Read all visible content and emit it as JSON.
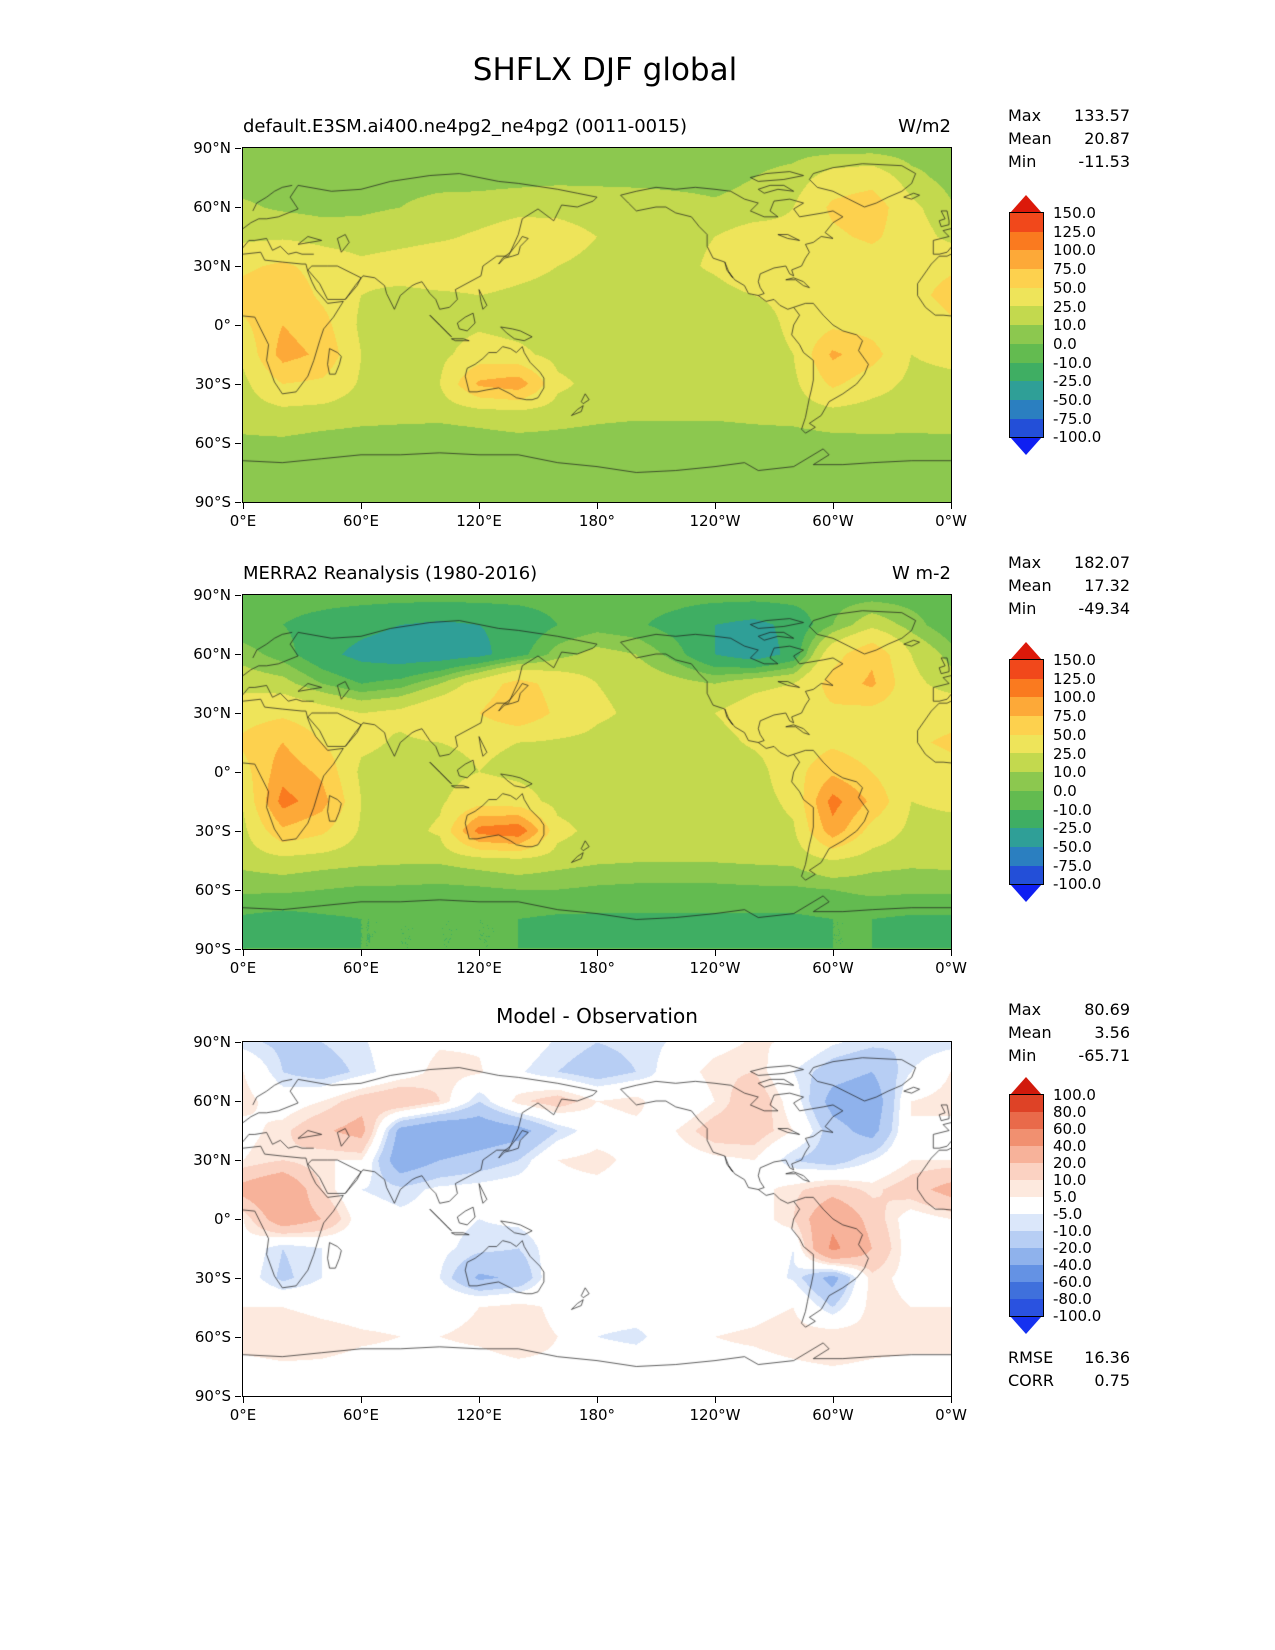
{
  "title": "SHFLX DJF global",
  "panels": [
    {
      "title_left": "default.E3SM.ai400.ne4pg2_ne4pg2 (0011-0015)",
      "units": "W/m2",
      "stats": {
        "max_label": "Max",
        "max_value": "133.57",
        "mean_label": "Mean",
        "mean_value": "20.87",
        "min_label": "Min",
        "min_value": "-11.53"
      }
    },
    {
      "title_left": "MERRA2 Reanalysis (1980-2016)",
      "units": "W m-2",
      "stats": {
        "max_label": "Max",
        "max_value": "182.07",
        "mean_label": "Mean",
        "mean_value": "17.32",
        "min_label": "Min",
        "min_value": "-49.34"
      }
    },
    {
      "title_center": "Model - Observation",
      "stats": {
        "max_label": "Max",
        "max_value": "80.69",
        "mean_label": "Mean",
        "mean_value": "3.56",
        "min_label": "Min",
        "min_value": "-65.71"
      },
      "metrics": {
        "rmse_label": "RMSE",
        "rmse_value": "16.36",
        "corr_label": "CORR",
        "corr_value": "0.75"
      }
    }
  ],
  "axes": {
    "x_tick_lons": [
      0,
      60,
      120,
      180,
      240,
      300,
      360
    ],
    "x_tick_labels": [
      "0°E",
      "60°E",
      "120°E",
      "180°",
      "120°W",
      "60°W",
      "0°W"
    ],
    "y_tick_lats": [
      90,
      60,
      30,
      0,
      -30,
      -60,
      -90
    ],
    "y_tick_labels": [
      "90°N",
      "60°N",
      "30°N",
      "0°",
      "30°S",
      "60°S",
      "90°S"
    ]
  },
  "chart_data": {
    "type": "heatmap",
    "variable": "SHFLX",
    "season": "DJF",
    "region": "global",
    "projection": "equirectangular, lon 0E eastward to 0W, lat 90N to 90S",
    "colorbars": {
      "flux": {
        "levels": [
          -100,
          -75,
          -50,
          -25,
          -10,
          0,
          10,
          25,
          50,
          75,
          100,
          125,
          150
        ],
        "labels_top_to_bottom": [
          "150.0",
          "125.0",
          "100.0",
          "75.0",
          "50.0",
          "25.0",
          "10.0",
          "0.0",
          "-10.0",
          "-25.0",
          "-50.0",
          "-75.0",
          "-100.0"
        ],
        "colors_low_to_high": [
          "#0f1ff2",
          "#234fd8",
          "#2b7fc0",
          "#2f9f97",
          "#3fae63",
          "#63bb50",
          "#8cc84f",
          "#c3d94e",
          "#eee45a",
          "#fdd14e",
          "#fda938",
          "#fa7a1f",
          "#f1481b",
          "#dc190a"
        ]
      },
      "diff": {
        "levels": [
          -100,
          -80,
          -60,
          -40,
          -20,
          -10,
          -5,
          5,
          10,
          20,
          40,
          60,
          80,
          100
        ],
        "labels_top_to_bottom": [
          "100.0",
          "80.0",
          "60.0",
          "40.0",
          "20.0",
          "10.0",
          "5.0",
          "-5.0",
          "-10.0",
          "-20.0",
          "-40.0",
          "-60.0",
          "-80.0",
          "-100.0"
        ],
        "colors_low_to_high": [
          "#1531f0",
          "#2a52e0",
          "#3f70dc",
          "#6492e4",
          "#8fb2ec",
          "#b7cef4",
          "#dbe7fa",
          "#ffffff",
          "#fde9de",
          "#fbd2c2",
          "#f7b29a",
          "#f19070",
          "#e96a4a",
          "#de4226",
          "#d11a0c"
        ]
      }
    },
    "grids_note": "field values estimated from figure on a 20deg-lon x 15deg-lat grid; rows lat 90N to 90S, cols lon 0E eastward to 360",
    "panels": [
      {
        "name": "model",
        "colorbar": "flux",
        "grid": [
          [
            3,
            3,
            3,
            4,
            4,
            4,
            4,
            4,
            4,
            4,
            4,
            4,
            4,
            5,
            5,
            4,
            4,
            3,
            3
          ],
          [
            5,
            4,
            4,
            5,
            6,
            6,
            5,
            5,
            6,
            6,
            6,
            6,
            6,
            10,
            15,
            35,
            40,
            15,
            5
          ],
          [
            12,
            8,
            6,
            8,
            10,
            14,
            16,
            20,
            22,
            20,
            18,
            15,
            12,
            15,
            25,
            55,
            65,
            30,
            12
          ],
          [
            20,
            22,
            18,
            15,
            18,
            22,
            28,
            35,
            30,
            25,
            22,
            20,
            25,
            35,
            30,
            45,
            55,
            35,
            20
          ],
          [
            45,
            55,
            40,
            30,
            35,
            40,
            35,
            30,
            25,
            22,
            20,
            20,
            28,
            40,
            30,
            28,
            35,
            40,
            45
          ],
          [
            60,
            70,
            45,
            25,
            20,
            22,
            25,
            22,
            20,
            18,
            18,
            16,
            18,
            25,
            30,
            35,
            30,
            40,
            60
          ],
          [
            45,
            75,
            60,
            20,
            15,
            18,
            22,
            18,
            15,
            14,
            14,
            13,
            13,
            15,
            30,
            45,
            40,
            25,
            45
          ],
          [
            30,
            85,
            70,
            25,
            18,
            20,
            35,
            30,
            18,
            15,
            14,
            13,
            13,
            15,
            25,
            80,
            60,
            25,
            30
          ],
          [
            20,
            50,
            45,
            22,
            18,
            25,
            80,
            90,
            30,
            18,
            15,
            14,
            14,
            16,
            20,
            55,
            35,
            20,
            20
          ],
          [
            15,
            18,
            16,
            14,
            13,
            13,
            15,
            18,
            15,
            13,
            12,
            12,
            12,
            13,
            14,
            18,
            15,
            14,
            15
          ],
          [
            8,
            8,
            6,
            5,
            5,
            4,
            5,
            6,
            6,
            5,
            4,
            4,
            4,
            5,
            5,
            6,
            8,
            8,
            8
          ],
          [
            4,
            3,
            3,
            3,
            3,
            3,
            3,
            3,
            4,
            4,
            4,
            3,
            3,
            3,
            3,
            4,
            4,
            4,
            4
          ],
          [
            3,
            3,
            3,
            3,
            3,
            3,
            3,
            3,
            3,
            3,
            3,
            3,
            3,
            3,
            3,
            3,
            3,
            3,
            3
          ]
        ]
      },
      {
        "name": "observation",
        "colorbar": "flux",
        "grid": [
          [
            -5,
            -5,
            -5,
            -5,
            -5,
            -5,
            -5,
            -5,
            -5,
            -5,
            -5,
            -5,
            -5,
            -5,
            -5,
            -5,
            -5,
            -5,
            -5
          ],
          [
            -8,
            -10,
            -15,
            -20,
            -25,
            -28,
            -25,
            -20,
            -10,
            -5,
            -8,
            -15,
            -25,
            -30,
            -20,
            0,
            20,
            5,
            -8
          ],
          [
            5,
            -5,
            -20,
            -30,
            -35,
            -35,
            -30,
            -15,
            5,
            15,
            10,
            -5,
            -25,
            -35,
            -20,
            40,
            70,
            25,
            5
          ],
          [
            18,
            15,
            0,
            -10,
            -5,
            10,
            35,
            60,
            40,
            25,
            20,
            15,
            10,
            20,
            25,
            60,
            80,
            30,
            18
          ],
          [
            40,
            45,
            35,
            25,
            30,
            45,
            50,
            70,
            45,
            28,
            22,
            20,
            25,
            35,
            40,
            45,
            40,
            35,
            40
          ],
          [
            55,
            75,
            50,
            30,
            22,
            25,
            28,
            25,
            22,
            20,
            18,
            17,
            18,
            28,
            35,
            45,
            35,
            45,
            55
          ],
          [
            40,
            90,
            70,
            20,
            16,
            18,
            25,
            20,
            16,
            15,
            14,
            13,
            13,
            16,
            40,
            70,
            50,
            25,
            40
          ],
          [
            28,
            110,
            85,
            25,
            18,
            22,
            40,
            35,
            18,
            15,
            14,
            13,
            13,
            16,
            30,
            110,
            70,
            25,
            28
          ],
          [
            20,
            70,
            55,
            22,
            18,
            28,
            110,
            120,
            32,
            18,
            15,
            14,
            14,
            16,
            22,
            90,
            40,
            20,
            20
          ],
          [
            14,
            18,
            15,
            13,
            12,
            12,
            16,
            20,
            15,
            12,
            11,
            11,
            11,
            12,
            13,
            25,
            15,
            13,
            14
          ],
          [
            2,
            2,
            0,
            -2,
            -2,
            -3,
            -2,
            0,
            0,
            -2,
            -3,
            -3,
            -3,
            -2,
            -2,
            0,
            3,
            2,
            2
          ],
          [
            -12,
            -15,
            -12,
            -10,
            -10,
            -10,
            -10,
            -10,
            -12,
            -12,
            -12,
            -12,
            -12,
            -12,
            -12,
            -10,
            -10,
            -12,
            -12
          ],
          [
            -10,
            -10,
            -10,
            -10,
            -10,
            -10,
            -10,
            -10,
            -10,
            -10,
            -10,
            -10,
            -10,
            -10,
            -10,
            -10,
            -10,
            -10,
            -10
          ]
        ]
      },
      {
        "name": "difference",
        "colorbar": "diff",
        "grid": [
          [
            -8,
            -12,
            -10,
            -6,
            0,
            4,
            4,
            0,
            -6,
            -10,
            -8,
            -4,
            2,
            6,
            4,
            -4,
            -8,
            -10,
            -8
          ],
          [
            5,
            -10,
            -15,
            -8,
            0,
            8,
            6,
            -4,
            -10,
            -15,
            -10,
            0,
            8,
            10,
            -5,
            -15,
            -20,
            -5,
            5
          ],
          [
            8,
            0,
            5,
            15,
            20,
            10,
            -10,
            8,
            15,
            5,
            8,
            -5,
            5,
            18,
            0,
            -25,
            -30,
            5,
            8
          ],
          [
            2,
            8,
            18,
            25,
            -25,
            -35,
            -30,
            -25,
            -10,
            0,
            2,
            5,
            15,
            15,
            5,
            -15,
            -25,
            5,
            2
          ],
          [
            5,
            10,
            5,
            5,
            -30,
            -20,
            -15,
            -10,
            5,
            8,
            2,
            0,
            3,
            5,
            -10,
            -15,
            -5,
            5,
            5
          ],
          [
            25,
            35,
            10,
            -5,
            -8,
            -3,
            -2,
            0,
            2,
            2,
            0,
            0,
            0,
            2,
            8,
            15,
            8,
            15,
            25
          ],
          [
            5,
            30,
            20,
            0,
            -3,
            -2,
            -5,
            -3,
            0,
            0,
            0,
            0,
            0,
            0,
            10,
            35,
            15,
            0,
            5
          ],
          [
            2,
            -10,
            -5,
            0,
            0,
            -3,
            -8,
            -10,
            0,
            0,
            0,
            0,
            0,
            0,
            -5,
            45,
            20,
            0,
            2
          ],
          [
            0,
            -12,
            -5,
            0,
            2,
            -5,
            -22,
            -18,
            4,
            0,
            0,
            0,
            0,
            0,
            -6,
            -25,
            8,
            2,
            0
          ],
          [
            5,
            5,
            3,
            2,
            2,
            3,
            5,
            8,
            3,
            2,
            2,
            2,
            2,
            3,
            5,
            -10,
            8,
            5,
            5
          ],
          [
            8,
            10,
            8,
            6,
            5,
            5,
            6,
            8,
            5,
            -5,
            -8,
            3,
            5,
            6,
            8,
            10,
            8,
            8,
            8
          ],
          [
            3,
            4,
            4,
            3,
            3,
            3,
            3,
            4,
            4,
            3,
            3,
            3,
            3,
            3,
            4,
            5,
            4,
            3,
            3
          ],
          [
            2,
            2,
            2,
            2,
            2,
            2,
            2,
            2,
            2,
            2,
            2,
            2,
            2,
            2,
            2,
            2,
            2,
            2,
            2
          ]
        ]
      }
    ]
  }
}
